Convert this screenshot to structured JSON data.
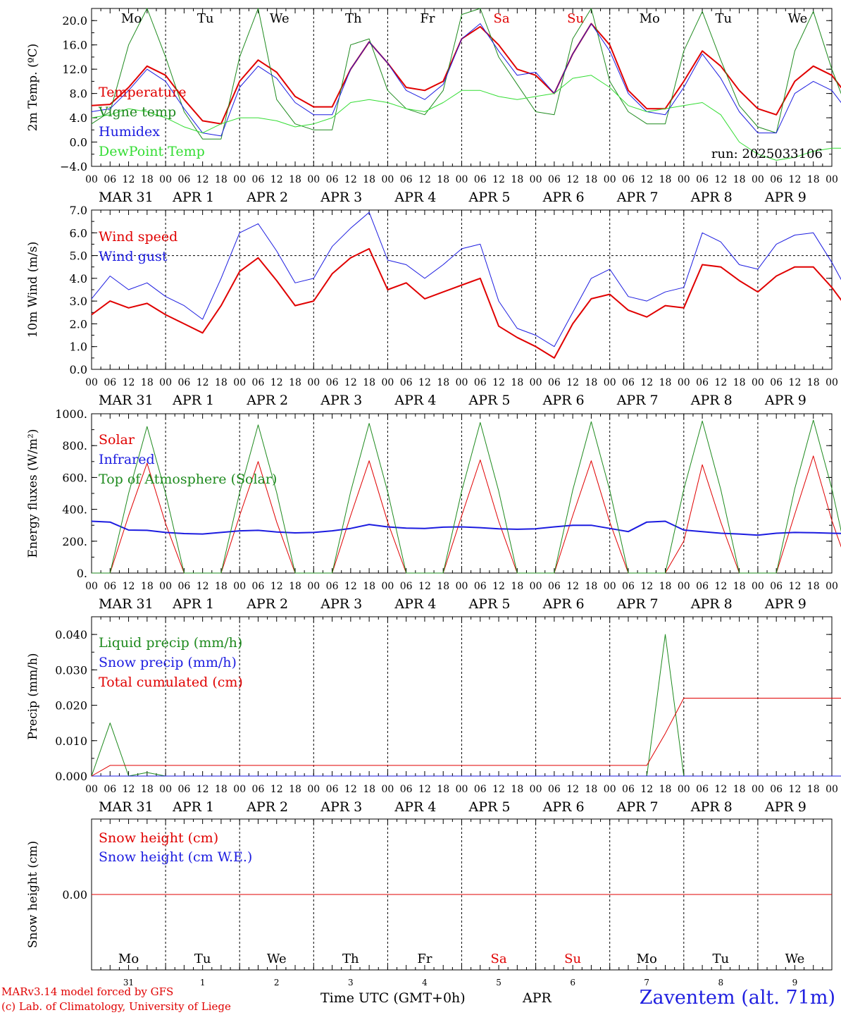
{
  "station": "Zaventem (alt. 71m)",
  "run_label": "run: 2025033106",
  "footer": {
    "model": "MARv3.14 model forced by GFS",
    "credit": "(c) Lab. of Climatology, University of Liege",
    "time_label": "Time UTC (GMT+0h)",
    "month": "APR"
  },
  "colors": {
    "red": "#e00000",
    "green": "#1e8a1e",
    "blue": "#1c1ce0",
    "light_green": "#33dd33",
    "axis": "#000000"
  },
  "days": [
    "Mo",
    "Tu",
    "We",
    "Th",
    "Fr",
    "Sa",
    "Su",
    "Mo",
    "Tu",
    "We"
  ],
  "weekend_days": [
    5,
    6
  ],
  "date_labels": [
    "MAR 31",
    "APR  1",
    "APR  2",
    "APR  3",
    "APR  4",
    "APR  5",
    "APR  6",
    "APR  7",
    "APR  8",
    "APR  9"
  ],
  "day_numbers": [
    "31",
    "1",
    "2",
    "3",
    "4",
    "5",
    "6",
    "7",
    "8",
    "9"
  ],
  "hour_ticks": [
    "00",
    "06",
    "12",
    "18"
  ],
  "chart_data": [
    {
      "type": "line",
      "ylabel": "2m Temp. (ºC)",
      "ylim": [
        -4,
        22
      ],
      "yticks": [
        "20.0",
        "16.0",
        "12.0",
        "8.0",
        "4.0",
        "0.0",
        "−4.0"
      ],
      "ytick_values": [
        20,
        16,
        12,
        8,
        4,
        0,
        -4
      ],
      "x_hours_step": 6,
      "series": [
        {
          "name": "Temperature",
          "color": "#e00000",
          "width": 2,
          "values": [
            6.0,
            6.2,
            9.0,
            12.5,
            11.0,
            7.0,
            3.5,
            3.0,
            10.0,
            13.5,
            11.5,
            7.5,
            5.8,
            5.8,
            12.0,
            16.5,
            13.0,
            9.0,
            8.5,
            10.0,
            17.0,
            19.0,
            16.0,
            12.0,
            11.0,
            8.0,
            14.5,
            19.5,
            16.0,
            8.5,
            5.5,
            5.5,
            10.0,
            15.0,
            12.5,
            8.5,
            5.5,
            4.5,
            10.0,
            12.5,
            11.0,
            7.0,
            4.0,
            3.5,
            10.0,
            14.0,
            13.0,
            9.0,
            6.0,
            4.5,
            10.5,
            14.5,
            13.0,
            8.5,
            6.0,
            5.0,
            11.0,
            14.5,
            13.5,
            8.5,
            8.0
          ]
        },
        {
          "name": "Vigne temp",
          "color": "#1e8a1e",
          "width": 1,
          "values": [
            3.0,
            5.0,
            16.0,
            22.0,
            14.0,
            5.0,
            0.5,
            0.5,
            14.0,
            22.0,
            7.0,
            3.0,
            2.0,
            2.0,
            16.0,
            17.0,
            8.5,
            5.5,
            4.5,
            8.5,
            21.0,
            22.0,
            14.0,
            9.5,
            5.0,
            4.5,
            17.0,
            22.0,
            10.0,
            5.0,
            3.0,
            3.0,
            15.0,
            21.5,
            13.5,
            6.0,
            2.5,
            1.5,
            15.0,
            21.5,
            12.0,
            4.0,
            1.5,
            -0.5,
            14.5,
            21.5,
            12.0,
            4.0,
            1.5,
            0.5,
            14.5,
            21.5,
            11.0,
            4.0,
            2.0,
            3.5,
            15.0,
            21.0,
            10.0,
            4.0,
            2.0
          ]
        },
        {
          "name": "Humidex",
          "color": "#1c1ce0",
          "width": 1,
          "values": [
            5.0,
            5.5,
            8.5,
            12.0,
            10.0,
            5.5,
            1.5,
            1.0,
            9.0,
            12.5,
            10.5,
            6.5,
            4.5,
            4.5,
            12.0,
            16.5,
            13.0,
            8.5,
            7.0,
            9.5,
            17.0,
            19.5,
            15.0,
            11.0,
            11.5,
            8.0,
            14.5,
            19.5,
            15.0,
            8.0,
            5.0,
            4.5,
            9.0,
            14.5,
            10.5,
            5.0,
            1.5,
            1.5,
            8.0,
            10.0,
            8.5,
            4.5,
            1.5,
            0.5,
            8.5,
            12.5,
            11.5,
            6.5,
            3.0,
            2.5,
            9.5,
            13.0,
            12.0,
            7.0,
            4.5,
            3.5,
            10.0,
            14.0,
            12.5,
            7.5,
            6.5
          ]
        },
        {
          "name": "DewPoint Temp",
          "color": "#33dd33",
          "width": 1,
          "values": [
            4.0,
            4.5,
            5.5,
            5.0,
            4.0,
            2.5,
            1.5,
            3.0,
            4.0,
            4.0,
            3.5,
            2.5,
            3.0,
            4.0,
            6.5,
            7.0,
            6.5,
            5.5,
            5.0,
            6.5,
            8.5,
            8.5,
            7.5,
            7.0,
            7.5,
            8.0,
            10.5,
            11.0,
            9.0,
            6.0,
            5.0,
            5.5,
            6.0,
            6.5,
            4.5,
            0.0,
            -2.0,
            -3.0,
            -2.5,
            -1.5,
            -1.0,
            -1.0,
            -2.0,
            -1.5,
            1.0,
            2.5,
            2.0,
            2.0,
            2.5,
            2.5,
            3.5,
            3.0,
            3.5,
            4.0,
            4.0,
            4.5,
            5.5,
            5.5,
            5.0,
            3.5,
            3.5
          ]
        }
      ]
    },
    {
      "type": "line",
      "ylabel": "10m Wind (m/s)",
      "ylim": [
        0,
        7
      ],
      "yticks": [
        "7.0",
        "6.0",
        "5.0",
        "4.0",
        "3.0",
        "2.0",
        "1.0",
        "0.0"
      ],
      "ytick_values": [
        7,
        6,
        5,
        4,
        3,
        2,
        1,
        0
      ],
      "ref_line": 5,
      "x_hours_step": 6,
      "series": [
        {
          "name": "Wind speed",
          "color": "#e00000",
          "width": 2,
          "values": [
            2.4,
            3.0,
            2.7,
            2.9,
            2.4,
            2.0,
            1.6,
            2.8,
            4.3,
            4.9,
            3.9,
            2.8,
            3.0,
            4.2,
            4.9,
            5.3,
            3.5,
            3.8,
            3.1,
            3.4,
            3.7,
            4.0,
            1.9,
            1.4,
            1.0,
            0.5,
            2.0,
            3.1,
            3.3,
            2.6,
            2.3,
            2.8,
            2.7,
            4.6,
            4.5,
            3.9,
            3.4,
            4.1,
            4.5,
            4.5,
            3.6,
            2.5,
            1.5,
            1.8,
            3.0,
            3.1,
            2.3,
            1.0,
            1.0,
            0.8,
            3.0,
            3.3,
            2.0,
            2.0,
            2.0,
            3.5,
            4.1,
            4.3,
            4.2,
            3.7,
            3.7
          ]
        },
        {
          "name": "Wind gust",
          "color": "#1c1ce0",
          "width": 1,
          "values": [
            3.1,
            4.1,
            3.5,
            3.8,
            3.2,
            2.8,
            2.2,
            4.0,
            6.0,
            6.4,
            5.2,
            3.8,
            4.0,
            5.4,
            6.2,
            6.9,
            4.8,
            4.6,
            4.0,
            4.6,
            5.3,
            5.5,
            3.0,
            1.8,
            1.5,
            1.0,
            2.5,
            4.0,
            4.4,
            3.2,
            3.0,
            3.4,
            3.6,
            6.0,
            5.6,
            4.6,
            4.4,
            5.5,
            5.9,
            6.0,
            4.7,
            3.2,
            2.0,
            2.3,
            4.0,
            4.1,
            3.0,
            1.3,
            1.3,
            1.3,
            4.0,
            4.3,
            2.5,
            3.2,
            2.9,
            4.8,
            5.4,
            5.4,
            5.5,
            4.9,
            4.9
          ]
        }
      ]
    },
    {
      "type": "line",
      "ylabel": "Energy fluxes (W/m²)",
      "ylim": [
        0,
        1000
      ],
      "yticks": [
        "1000.",
        "800.",
        "600.",
        "400.",
        "200.",
        "0."
      ],
      "ytick_values": [
        1000,
        800,
        600,
        400,
        200,
        0
      ],
      "x_hours_step": 6,
      "series": [
        {
          "name": "Solar",
          "color": "#e00000",
          "width": 1,
          "values": [
            0,
            0,
            360,
            690,
            310,
            0,
            0,
            0,
            360,
            700,
            320,
            0,
            0,
            0,
            360,
            705,
            320,
            0,
            0,
            0,
            360,
            710,
            325,
            0,
            0,
            0,
            360,
            705,
            320,
            0,
            0,
            0,
            200,
            680,
            320,
            0,
            0,
            0,
            370,
            735,
            330,
            0,
            0,
            0,
            365,
            730,
            330,
            0,
            0,
            0,
            370,
            735,
            330,
            0,
            0,
            0,
            370,
            740,
            330,
            0,
            0
          ]
        },
        {
          "name": "Infrared",
          "color": "#1c1ce0",
          "width": 2,
          "values": [
            325,
            320,
            270,
            268,
            255,
            248,
            245,
            255,
            265,
            268,
            258,
            252,
            255,
            265,
            280,
            305,
            290,
            282,
            280,
            288,
            290,
            285,
            278,
            275,
            278,
            290,
            300,
            300,
            280,
            260,
            320,
            325,
            270,
            260,
            250,
            245,
            238,
            250,
            255,
            253,
            250,
            248,
            240,
            248,
            262,
            262,
            258,
            255,
            252,
            262,
            270,
            272,
            265,
            262,
            262,
            268,
            272,
            276,
            340,
            330,
            265
          ]
        },
        {
          "name": "Top of Atmosphere (Solar)",
          "color": "#1e8a1e",
          "width": 1,
          "values": [
            0,
            0,
            500,
            920,
            500,
            0,
            0,
            0,
            505,
            930,
            505,
            0,
            0,
            0,
            510,
            940,
            510,
            0,
            0,
            0,
            515,
            945,
            515,
            0,
            0,
            0,
            520,
            950,
            520,
            0,
            0,
            0,
            525,
            955,
            525,
            0,
            0,
            0,
            530,
            960,
            530,
            0,
            0,
            0,
            535,
            965,
            535,
            0,
            0,
            0,
            540,
            970,
            540,
            0,
            0,
            0,
            545,
            975,
            545,
            0,
            0
          ]
        }
      ]
    },
    {
      "type": "line",
      "ylabel": "Precip (mm/h)",
      "ylim": [
        0,
        0.045
      ],
      "yticks": [
        "0.040",
        "0.030",
        "0.020",
        "0.010",
        "0.000"
      ],
      "ytick_values": [
        0.04,
        0.03,
        0.02,
        0.01,
        0
      ],
      "x_hours_step": 6,
      "series": [
        {
          "name": "Liquid precip (mm/h)",
          "color": "#1e8a1e",
          "width": 1,
          "values": [
            0,
            0.015,
            0,
            0.001,
            0,
            0,
            0,
            0,
            0,
            0,
            0,
            0,
            0,
            0,
            0,
            0,
            0,
            0,
            0,
            0,
            0,
            0,
            0,
            0,
            0,
            0,
            0,
            0,
            0,
            0,
            0,
            0.04,
            0,
            0,
            0,
            0,
            0,
            0,
            0,
            0,
            0,
            0,
            0,
            0,
            0,
            0,
            0,
            0,
            0,
            0,
            0,
            0,
            0,
            0,
            0,
            0,
            0,
            0,
            0,
            0,
            0
          ]
        },
        {
          "name": "Snow precip (mm/h)",
          "color": "#1c1ce0",
          "width": 1,
          "values": [
            0,
            0,
            0,
            0,
            0,
            0,
            0,
            0,
            0,
            0,
            0,
            0,
            0,
            0,
            0,
            0,
            0,
            0,
            0,
            0,
            0,
            0,
            0,
            0,
            0,
            0,
            0,
            0,
            0,
            0,
            0,
            0,
            0,
            0,
            0,
            0,
            0,
            0,
            0,
            0,
            0,
            0,
            0,
            0,
            0,
            0,
            0,
            0,
            0,
            0,
            0,
            0,
            0,
            0,
            0,
            0,
            0,
            0,
            0,
            0,
            0
          ]
        },
        {
          "name": "Total cumulated (cm)",
          "color": "#e00000",
          "width": 1,
          "values": [
            0,
            0.003,
            0.003,
            0.003,
            0.003,
            0.003,
            0.003,
            0.003,
            0.003,
            0.003,
            0.003,
            0.003,
            0.003,
            0.003,
            0.003,
            0.003,
            0.003,
            0.003,
            0.003,
            0.003,
            0.003,
            0.003,
            0.003,
            0.003,
            0.003,
            0.003,
            0.003,
            0.003,
            0.003,
            0.003,
            0.003,
            0.012,
            0.022,
            0.022,
            0.022,
            0.022,
            0.022,
            0.022,
            0.022,
            0.022,
            0.022,
            0.022,
            0.022,
            0.022,
            0.022,
            0.022,
            0.022,
            0.022,
            0.022,
            0.022,
            0.022,
            0.022,
            0.022,
            0.022,
            0.022,
            0.022,
            0.022,
            0.022,
            0.022,
            0.022,
            0.022
          ]
        }
      ]
    },
    {
      "type": "line",
      "ylabel": "Snow height (cm)",
      "ylim": [
        -1,
        1
      ],
      "yticks": [
        "0.00"
      ],
      "ytick_values": [
        0
      ],
      "x_hours_step": 6,
      "series": [
        {
          "name": "Snow height (cm)",
          "color": "#e00000",
          "width": 1,
          "values": [
            0,
            0
          ]
        },
        {
          "name": "Snow height (cm W.E.)",
          "color": "#1c1ce0",
          "width": 0,
          "values": []
        }
      ]
    }
  ]
}
